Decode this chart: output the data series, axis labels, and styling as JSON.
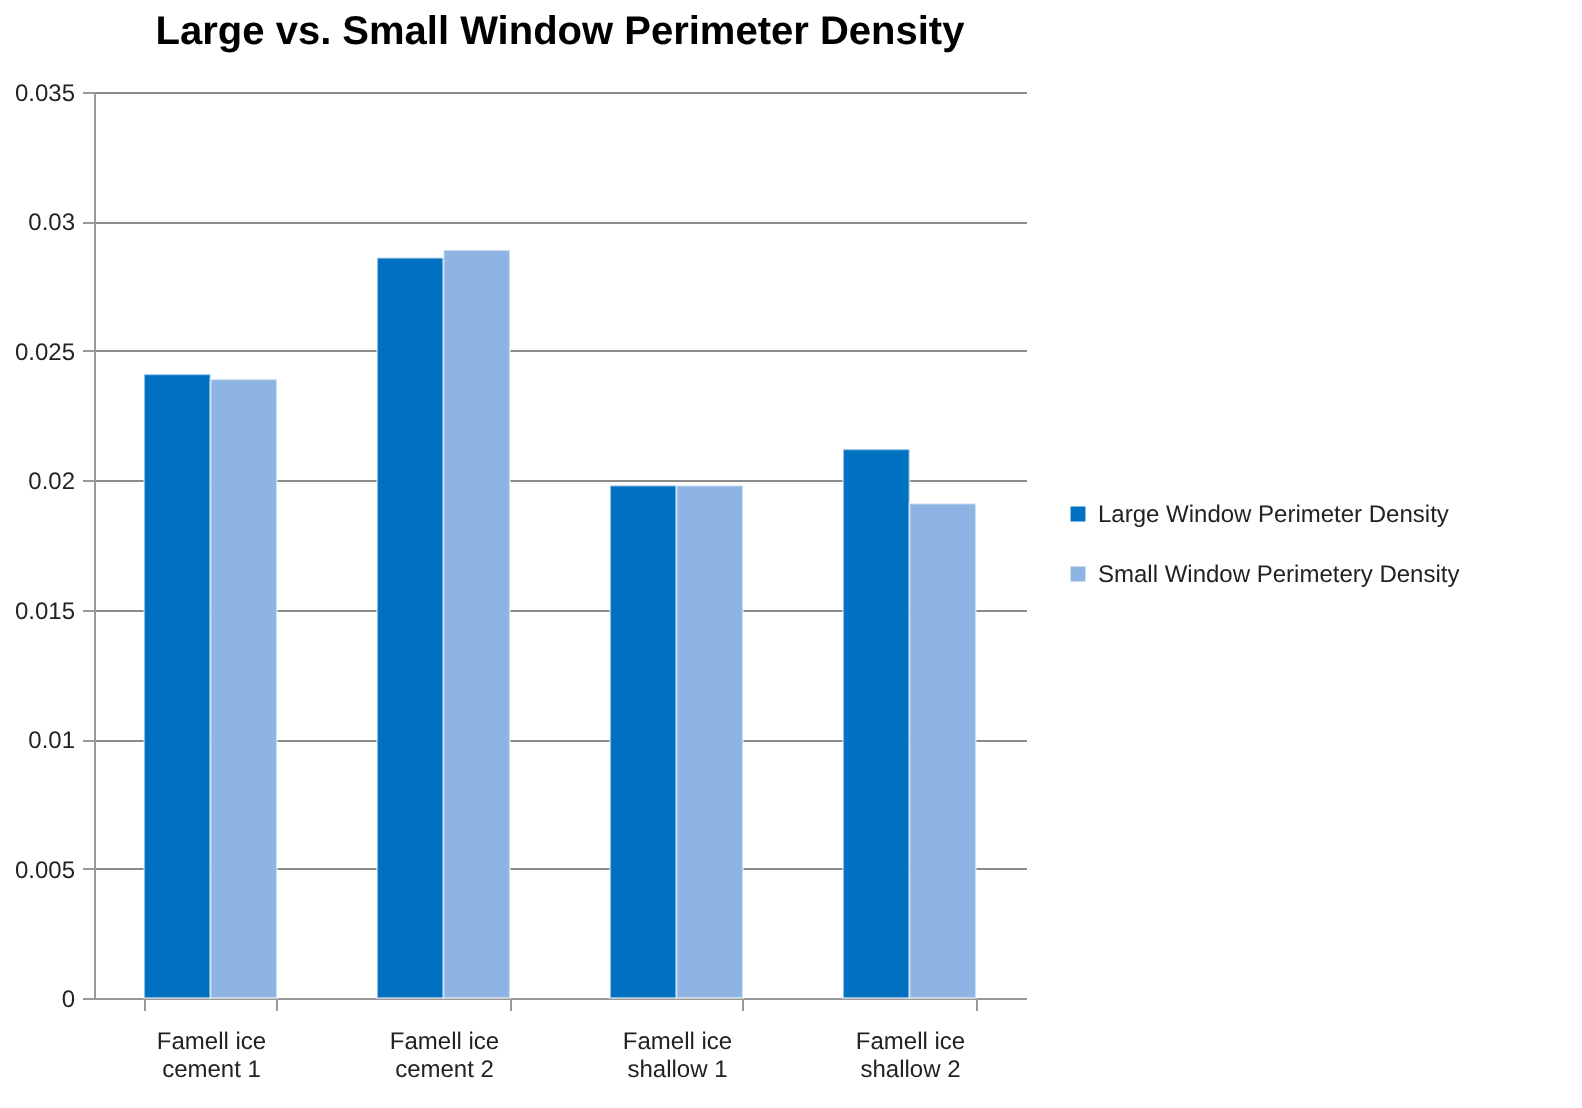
{
  "chart_data": {
    "type": "bar",
    "title": "Large vs. Small Window Perimeter Density",
    "categories": [
      "Famell ice cement 1",
      "Famell ice cement 2",
      "Famell ice shallow 1",
      "Famell ice shallow 2"
    ],
    "series": [
      {
        "name": "Large Window Perimeter Density",
        "color": "#0070c0",
        "values": [
          0.0241,
          0.0286,
          0.0198,
          0.0212
        ]
      },
      {
        "name": "Small Window Perimetery Density",
        "color": "#8db4e2",
        "values": [
          0.0239,
          0.0289,
          0.0198,
          0.0191
        ]
      }
    ],
    "ylim": [
      0,
      0.035
    ],
    "yticks": [
      0,
      0.005,
      0.01,
      0.015,
      0.02,
      0.025,
      0.03,
      0.035
    ],
    "grid": "y",
    "legend": "right"
  }
}
